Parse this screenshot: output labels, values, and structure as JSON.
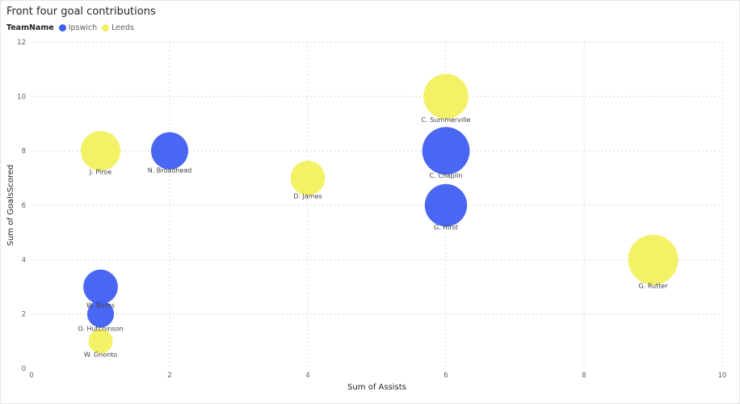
{
  "chart_data": {
    "type": "scatter",
    "title": "Front four goal contributions",
    "xlabel": "Sum of Assists",
    "ylabel": "Sum of GoalsScored",
    "xlim": [
      0,
      10
    ],
    "ylim": [
      0,
      12
    ],
    "x_ticks": [
      0,
      2,
      4,
      6,
      8,
      10
    ],
    "y_ticks": [
      0,
      2,
      4,
      6,
      8,
      10,
      12
    ],
    "grid": true,
    "legend": {
      "title": "TeamName",
      "placement": "top-left",
      "entries": [
        {
          "name": "Ipswich",
          "color": "#3f5ff2"
        },
        {
          "name": "Leeds",
          "color": "#f2f05e"
        }
      ]
    },
    "series": [
      {
        "name": "Ipswich",
        "color": "#3f5ff2",
        "points": [
          {
            "label": "N. Broadhead",
            "x": 2,
            "y": 8,
            "size": 8
          },
          {
            "label": "C. Chaplin",
            "x": 6,
            "y": 8,
            "size": 12
          },
          {
            "label": "G. Hirst",
            "x": 6,
            "y": 6,
            "size": 10
          },
          {
            "label": "W. Burns",
            "x": 1,
            "y": 3,
            "size": 7
          },
          {
            "label": "O. Hutchinson",
            "x": 1,
            "y": 2,
            "size": 4
          }
        ]
      },
      {
        "name": "Leeds",
        "color": "#f2f05e",
        "points": [
          {
            "label": "C. Summerville",
            "x": 6,
            "y": 10,
            "size": 11
          },
          {
            "label": "J. Piroe",
            "x": 1,
            "y": 8,
            "size": 9
          },
          {
            "label": "D. James",
            "x": 4,
            "y": 7,
            "size": 7
          },
          {
            "label": "G. Rutter",
            "x": 9,
            "y": 4,
            "size": 13
          },
          {
            "label": "W. Gnonto",
            "x": 1,
            "y": 1,
            "size": 3
          }
        ]
      }
    ]
  }
}
